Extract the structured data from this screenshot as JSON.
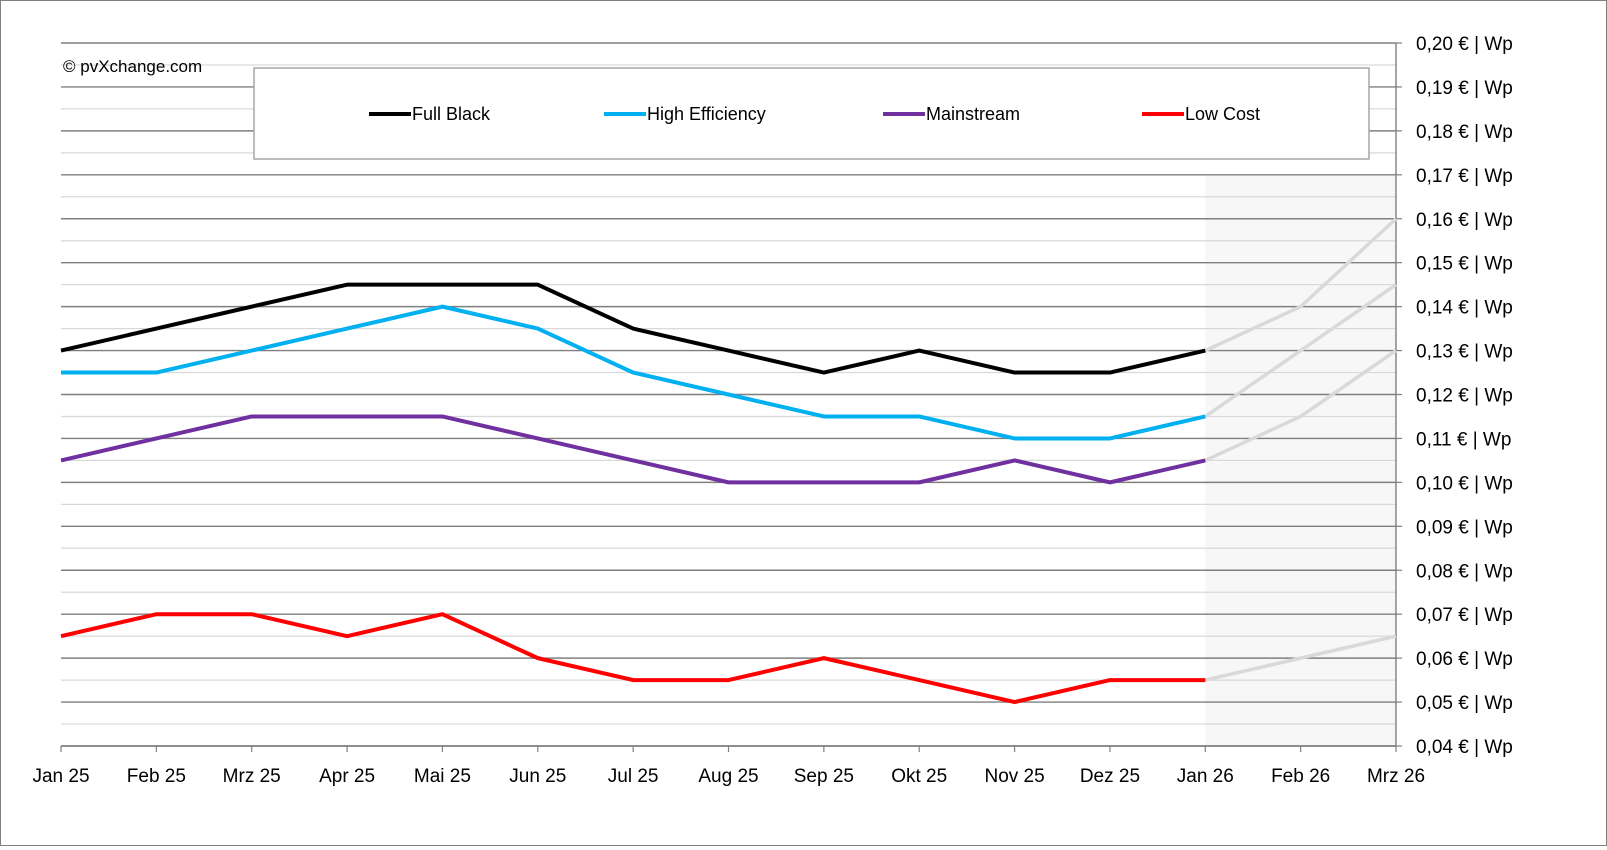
{
  "watermark": "© pvXchange.com",
  "chart_data": {
    "type": "line",
    "categories": [
      "Jan 25",
      "Feb 25",
      "Mrz 25",
      "Apr 25",
      "Mai 25",
      "Jun 25",
      "Jul 25",
      "Aug 25",
      "Sep 25",
      "Okt 25",
      "Nov 25",
      "Dez 25",
      "Jan 26",
      "Feb 26",
      "Mrz 26"
    ],
    "forecast_from_index": 12,
    "y_axis_position": "right",
    "ylim": [
      0.04,
      0.2
    ],
    "y_ticks": [
      "0,04 € | Wp",
      "0,05 € | Wp",
      "0,06 € | Wp",
      "0,07 € | Wp",
      "0,08 € | Wp",
      "0,09 € | Wp",
      "0,10 € | Wp",
      "0,11 € | Wp",
      "0,12 € | Wp",
      "0,13 € | Wp",
      "0,14 € | Wp",
      "0,15 € | Wp",
      "0,16 € | Wp",
      "0,17 € | Wp",
      "0,18 € | Wp",
      "0,19 € | Wp",
      "0,20 € | Wp"
    ],
    "grid": true,
    "legend_position": "top",
    "forecast_color": "#d9d9d9",
    "forecast_region_color": "#f7f7f7",
    "series": [
      {
        "name": "Full Black",
        "color": "#000000",
        "values": [
          0.13,
          0.135,
          0.14,
          0.145,
          0.145,
          0.145,
          0.135,
          0.13,
          0.125,
          0.13,
          0.125,
          0.125,
          0.13,
          0.14,
          0.16
        ]
      },
      {
        "name": "High Efficiency",
        "color": "#00b0f0",
        "values": [
          0.125,
          0.125,
          0.13,
          0.135,
          0.14,
          0.135,
          0.125,
          0.12,
          0.115,
          0.115,
          0.11,
          0.11,
          0.115,
          0.13,
          0.145
        ]
      },
      {
        "name": "Mainstream",
        "color": "#7030a0",
        "values": [
          0.105,
          0.11,
          0.115,
          0.115,
          0.115,
          0.11,
          0.105,
          0.1,
          0.1,
          0.1,
          0.105,
          0.1,
          0.105,
          0.115,
          0.13
        ]
      },
      {
        "name": "Low Cost",
        "color": "#ff0000",
        "values": [
          0.065,
          0.07,
          0.07,
          0.065,
          0.07,
          0.06,
          0.055,
          0.055,
          0.06,
          0.055,
          0.05,
          0.055,
          0.055,
          0.06,
          0.065
        ]
      }
    ]
  }
}
